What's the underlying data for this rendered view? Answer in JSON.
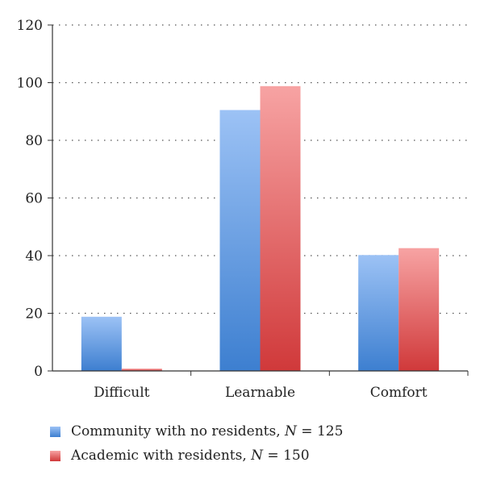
{
  "chart_data": {
    "type": "bar",
    "categories": [
      "Difficult",
      "Learnable",
      "Comfort"
    ],
    "series": [
      {
        "name": "Community with no residents, N = 125",
        "label_prefix": "Community with no residents, ",
        "label_n": "N",
        "label_suffix": " = 125",
        "values": [
          18.8,
          90.5,
          40.2
        ],
        "color_top": "#9cc2f5",
        "color_bottom": "#3d7fd0"
      },
      {
        "name": "Academic with residents, N = 150",
        "label_prefix": "Academic with residents, ",
        "label_n": "N",
        "label_suffix": " = 150",
        "values": [
          0.8,
          98.8,
          42.6
        ],
        "color_top": "#f7a3a3",
        "color_bottom": "#d0393a"
      }
    ],
    "ylim": [
      0,
      120
    ],
    "yticks": [
      0,
      20,
      40,
      60,
      80,
      100,
      120
    ],
    "grid": true,
    "legend_position": "bottom-left"
  }
}
